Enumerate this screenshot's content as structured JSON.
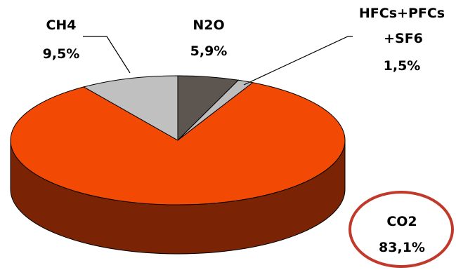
{
  "chart_data": {
    "type": "pie",
    "title": "",
    "slices": [
      {
        "name": "N2O",
        "value": 5.9,
        "label": "5,9%",
        "color": "#5d5650",
        "side": "#3b3631"
      },
      {
        "name": "HFCs+PFCs+SF6",
        "value": 1.5,
        "label": "1,5%",
        "color": "#bdbdbd",
        "side": "#8a8a8a"
      },
      {
        "name": "CO2",
        "value": 83.1,
        "label": "83,1%",
        "color": "#f24a05",
        "side": "#7a2405"
      },
      {
        "name": "CH4",
        "value": 9.5,
        "label": "9,5%",
        "color": "#c0c0c0",
        "side": "#8c8c8c"
      }
    ],
    "labels": {
      "ch4": {
        "name": "CH4",
        "value": "9,5%"
      },
      "n2o": {
        "name": "N2O",
        "value": "5,9%"
      },
      "hfc": {
        "line1": "HFCs+PFCs",
        "line2": "+SF6",
        "value": "1,5%"
      },
      "co2": {
        "name": "CO2",
        "value": "83,1%"
      }
    },
    "highlight": {
      "slice": "CO2",
      "ring_color": "#c0392b"
    }
  }
}
